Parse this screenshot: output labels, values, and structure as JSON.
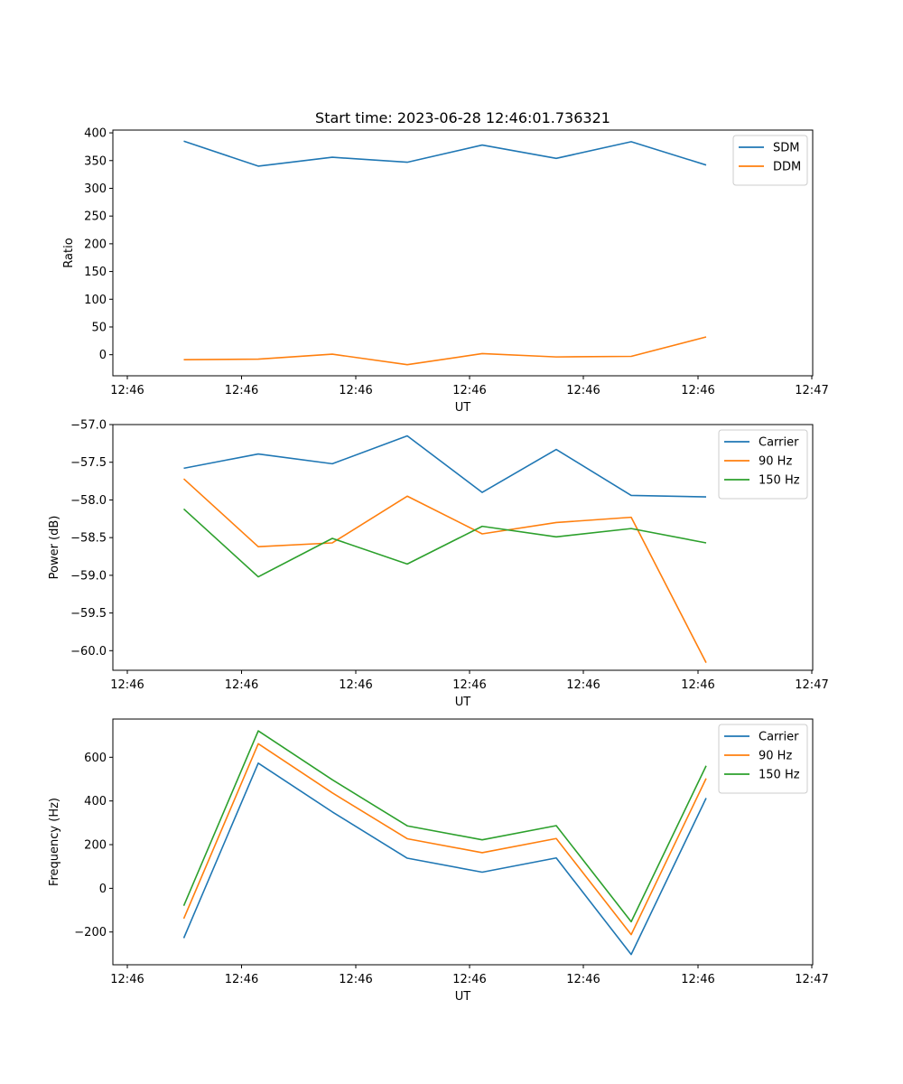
{
  "chart_data": [
    {
      "type": "line",
      "title": "Start time: 2023-06-28 12:46:01.736321",
      "xlabel": "UT",
      "ylabel": "Ratio",
      "xticks": [
        "12:46",
        "12:46",
        "12:46",
        "12:46",
        "12:46",
        "12:46",
        "12:46",
        "12:47"
      ],
      "yticks": [
        "0",
        "50",
        "100",
        "150",
        "200",
        "250",
        "300",
        "350",
        "400"
      ],
      "ylim": [
        -38,
        405
      ],
      "legend": "top-right",
      "grid": false,
      "series": [
        {
          "name": "SDM",
          "color": "#1f77b4",
          "values": [
            385,
            340,
            356,
            347,
            378,
            354,
            384,
            342
          ]
        },
        {
          "name": "DDM",
          "color": "#ff7f0e",
          "values": [
            -9,
            -8,
            1,
            -18,
            2,
            -4,
            -3,
            32
          ]
        }
      ]
    },
    {
      "type": "line",
      "title": "",
      "xlabel": "UT",
      "ylabel": "Power (dB)",
      "xticks": [
        "12:46",
        "12:46",
        "12:46",
        "12:46",
        "12:46",
        "12:46",
        "12:46",
        "12:47"
      ],
      "yticks": [
        "−60.0",
        "−59.5",
        "−59.0",
        "−58.5",
        "−58.0",
        "−57.5",
        "−57.0"
      ],
      "ylim": [
        -60.26,
        -57.0
      ],
      "legend": "top-right",
      "grid": false,
      "series": [
        {
          "name": "Carrier",
          "color": "#1f77b4",
          "values": [
            -57.58,
            -57.39,
            -57.52,
            -57.15,
            -57.9,
            -57.33,
            -57.94,
            -57.96
          ]
        },
        {
          "name": "90 Hz",
          "color": "#ff7f0e",
          "values": [
            -57.72,
            -58.62,
            -58.57,
            -57.95,
            -58.45,
            -58.3,
            -58.23,
            -60.16
          ]
        },
        {
          "name": "150 Hz",
          "color": "#2ca02c",
          "values": [
            -58.12,
            -59.02,
            -58.51,
            -58.85,
            -58.35,
            -58.49,
            -58.38,
            -58.57
          ]
        }
      ]
    },
    {
      "type": "line",
      "title": "",
      "xlabel": "UT",
      "ylabel": "Frequency (Hz)",
      "xticks": [
        "12:46",
        "12:46",
        "12:46",
        "12:46",
        "12:46",
        "12:46",
        "12:46",
        "12:47"
      ],
      "yticks": [
        "−200",
        "0",
        "200",
        "400",
        "600"
      ],
      "ylim": [
        -350,
        775
      ],
      "legend": "top-right",
      "grid": false,
      "series": [
        {
          "name": "Carrier",
          "color": "#1f77b4",
          "values": [
            -228,
            573,
            350,
            138,
            74,
            139,
            -303,
            413
          ]
        },
        {
          "name": "90 Hz",
          "color": "#ff7f0e",
          "values": [
            -139,
            662,
            437,
            227,
            163,
            228,
            -212,
            503
          ]
        },
        {
          "name": "150 Hz",
          "color": "#2ca02c",
          "values": [
            -80,
            721,
            497,
            286,
            222,
            287,
            -153,
            561
          ]
        }
      ]
    }
  ]
}
